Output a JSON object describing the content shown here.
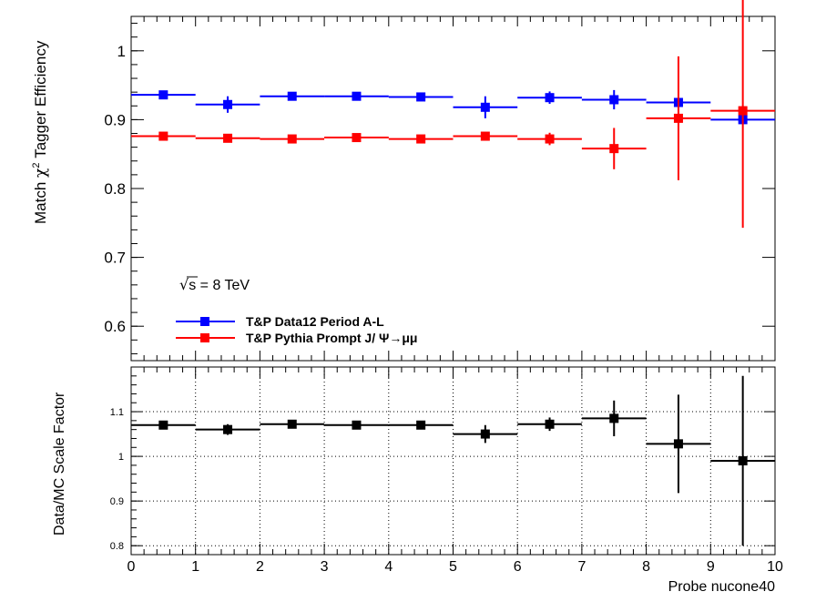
{
  "chart_data": [
    {
      "type": "scatter",
      "ylabel_pre": "Match ",
      "ylabel_chi": "χ",
      "ylabel_sup": "2",
      "ylabel_post": " Tagger Efficiency",
      "xlim": [
        0,
        10
      ],
      "ylim": [
        0.55,
        1.05
      ],
      "yticks": [
        0.6,
        0.7,
        0.8,
        0.9,
        1.0
      ],
      "ytick_labels": [
        "0.6",
        "0.7",
        "0.8",
        "0.9",
        "1"
      ],
      "annotation_sqrt": "√",
      "annotation_s": "s",
      "annotation_rest": " = 8 TeV",
      "legend_position": "lower-left",
      "x_bin_edges": [
        0,
        1,
        2,
        3,
        4,
        5,
        6,
        7,
        8,
        9,
        10
      ],
      "series": [
        {
          "name": "T&P Data12 Period A-L",
          "color": "#0000ff",
          "x": [
            0.5,
            1.5,
            2.5,
            3.5,
            4.5,
            5.5,
            6.5,
            7.5,
            8.5,
            9.5
          ],
          "y": [
            0.936,
            0.922,
            0.934,
            0.934,
            0.933,
            0.918,
            0.932,
            0.929,
            0.925,
            0.9
          ],
          "yerr": [
            0.003,
            0.012,
            0.003,
            0.003,
            0.003,
            0.016,
            0.009,
            0.014,
            0.0,
            0.0
          ]
        },
        {
          "name": "T&P Pythia Prompt J/  Ψ→μμ",
          "color": "#ff0000",
          "x": [
            0.5,
            1.5,
            2.5,
            3.5,
            4.5,
            5.5,
            6.5,
            7.5,
            8.5,
            9.5
          ],
          "y": [
            0.876,
            0.873,
            0.872,
            0.874,
            0.872,
            0.876,
            0.872,
            0.858,
            0.902,
            0.913
          ],
          "yerr": [
            0.002,
            0.002,
            0.002,
            0.002,
            0.002,
            0.002,
            0.009,
            0.03,
            0.09,
            0.17
          ]
        }
      ]
    },
    {
      "type": "scatter",
      "ylabel": "Data/MC Scale Factor",
      "xlabel": "Probe nucone40",
      "xlim": [
        0,
        10
      ],
      "ylim": [
        0.78,
        1.2
      ],
      "xticks": [
        0,
        1,
        2,
        3,
        4,
        5,
        6,
        7,
        8,
        9,
        10
      ],
      "xtick_labels": [
        "0",
        "1",
        "2",
        "3",
        "4",
        "5",
        "6",
        "7",
        "8",
        "9",
        "10"
      ],
      "yticks": [
        0.8,
        0.9,
        1.0,
        1.1
      ],
      "ytick_labels": [
        "0.8",
        "0.9",
        "1",
        "1.1"
      ],
      "grid": true,
      "series": [
        {
          "color": "#000000",
          "x": [
            0.5,
            1.5,
            2.5,
            3.5,
            4.5,
            5.5,
            6.5,
            7.5,
            8.5,
            9.5
          ],
          "y": [
            1.07,
            1.06,
            1.072,
            1.07,
            1.07,
            1.05,
            1.072,
            1.085,
            1.028,
            0.99
          ],
          "yerr": [
            0.005,
            0.012,
            0.005,
            0.005,
            0.005,
            0.02,
            0.015,
            0.04,
            0.11,
            0.19
          ]
        }
      ]
    }
  ]
}
